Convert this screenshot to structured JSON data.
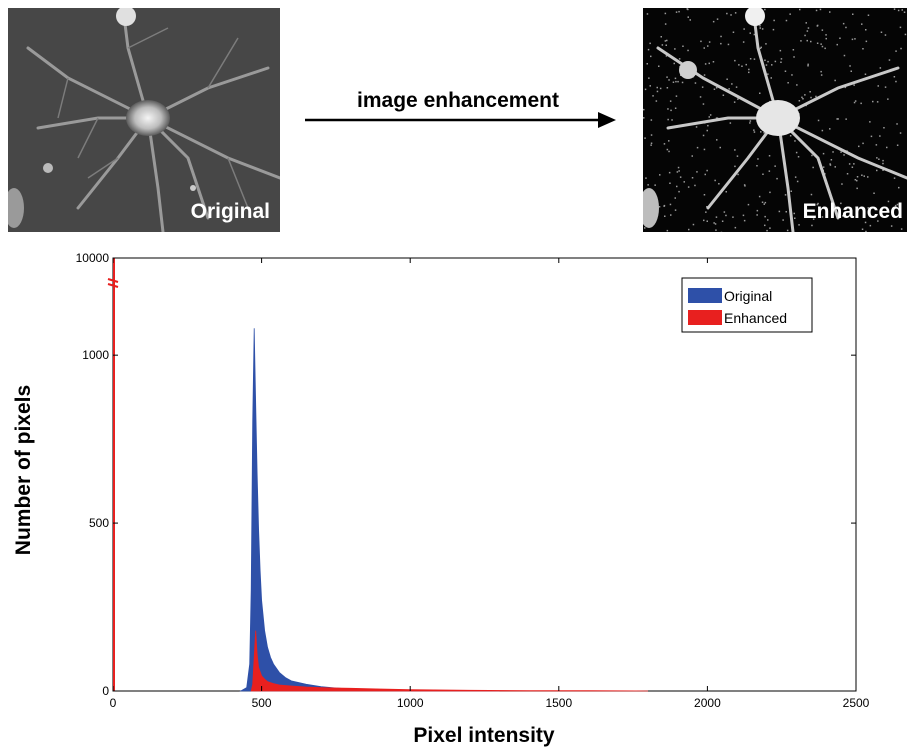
{
  "images": {
    "original_label": "Original",
    "enhanced_label": "Enhanced",
    "arrow_label": "image enhancement"
  },
  "chart_data": {
    "type": "area",
    "title": "",
    "xlabel": "Pixel intensity",
    "ylabel": "Number of pixels",
    "xlim": [
      0,
      2500
    ],
    "ylim": [
      0,
      10000
    ],
    "y_axis_break": [
      1200,
      10000
    ],
    "xticks": [
      "0",
      "500",
      "1000",
      "1500",
      "2000",
      "2500"
    ],
    "yticks": [
      "0",
      "500",
      "1000",
      "10000"
    ],
    "legend_position": "top-right",
    "series": [
      {
        "name": "Original",
        "color": "#2e50a8",
        "x": [
          430,
          450,
          460,
          465,
          470,
          475,
          480,
          485,
          490,
          495,
          500,
          510,
          520,
          530,
          540,
          560,
          580,
          600,
          650,
          700,
          750,
          800,
          900,
          1000,
          1100,
          1200,
          1300
        ],
        "values": [
          0,
          10,
          80,
          300,
          800,
          1080,
          850,
          650,
          480,
          360,
          270,
          180,
          130,
          100,
          80,
          55,
          40,
          30,
          20,
          13,
          9,
          6,
          4,
          2,
          1,
          1,
          0
        ]
      },
      {
        "name": "Enhanced",
        "color": "#e8201f",
        "x": [
          0,
          465,
          470,
          475,
          480,
          485,
          490,
          500,
          510,
          520,
          540,
          560,
          600,
          650,
          700,
          750,
          800,
          900,
          1000,
          1200,
          1400,
          1600,
          1800
        ],
        "values": [
          10000,
          0,
          20,
          100,
          180,
          110,
          70,
          45,
          35,
          28,
          22,
          18,
          15,
          12,
          10,
          9,
          8,
          6,
          4,
          2,
          1,
          1,
          0
        ]
      }
    ]
  }
}
